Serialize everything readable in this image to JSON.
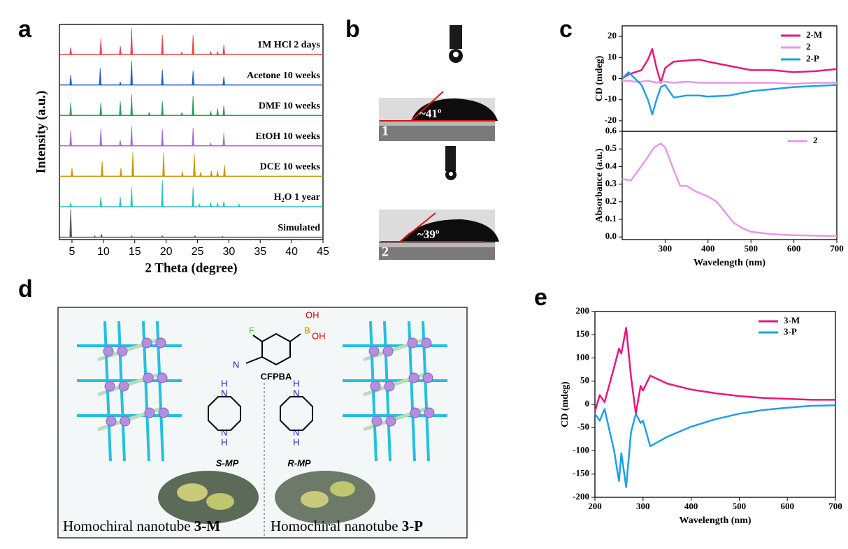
{
  "panel_labels": [
    "a",
    "b",
    "c",
    "d",
    "e"
  ],
  "chart_data": [
    {
      "type": "stick",
      "xlabel": "2 Theta (degree)",
      "ylabel": "Intensity (a.u.)",
      "xlim": [
        3,
        45
      ],
      "xticks": [
        5,
        10,
        15,
        20,
        25,
        30,
        35,
        40,
        45
      ],
      "series": [
        {
          "name": "1M HCl 2 days",
          "color": "#e8474a",
          "x": [
            4.8,
            9.6,
            12.7,
            14.5,
            19.4,
            22.5,
            24.3,
            27.1,
            28.2,
            29.2
          ],
          "values": [
            0.25,
            0.55,
            0.3,
            0.95,
            0.7,
            0.08,
            0.7,
            0.1,
            0.1,
            0.35
          ]
        },
        {
          "name": "Acetone 10 weeks",
          "color": "#1f5fcc",
          "x": [
            4.8,
            9.5,
            12.7,
            14.5,
            19.4,
            24.3,
            29.2
          ],
          "values": [
            0.35,
            0.6,
            0.1,
            0.85,
            0.55,
            0.5,
            0.3
          ]
        },
        {
          "name": "DMF 10 weeks",
          "color": "#2e9e5e",
          "x": [
            4.8,
            9.6,
            12.7,
            14.5,
            17.3,
            19.4,
            22.5,
            24.3,
            27.1,
            28.2,
            29.2
          ],
          "values": [
            0.45,
            0.45,
            0.5,
            0.75,
            0.1,
            0.5,
            0.1,
            0.7,
            0.15,
            0.25,
            0.35
          ]
        },
        {
          "name": "EtOH 10 weeks",
          "color": "#a66ad9",
          "x": [
            4.8,
            9.6,
            12.7,
            14.5,
            19.4,
            24.3,
            27.1,
            29.2
          ],
          "values": [
            0.55,
            0.6,
            0.2,
            0.7,
            0.6,
            0.65,
            0.1,
            0.45
          ]
        },
        {
          "name": "DCE 10 weeks",
          "color": "#c8960a",
          "x": [
            5,
            9.8,
            12.8,
            14.7,
            19.6,
            22.6,
            24.5,
            25.5,
            27.2,
            28.2,
            29.3
          ],
          "values": [
            0.3,
            0.55,
            0.3,
            0.85,
            0.85,
            0.15,
            0.8,
            0.15,
            0.2,
            0.2,
            0.4
          ]
        },
        {
          "name": "H₂O 1 year",
          "color": "#2cc2c2",
          "x": [
            4.8,
            9.6,
            12.7,
            14.5,
            19.4,
            24.3,
            25.3,
            27.1,
            28.2,
            29.2,
            31.6
          ],
          "values": [
            0.15,
            0.35,
            0.35,
            0.7,
            0.95,
            0.7,
            0.1,
            0.15,
            0.15,
            0.2,
            0.1
          ]
        },
        {
          "name": "Simulated",
          "color": "#555555",
          "x": [
            4.8,
            8.6,
            9.7,
            14.5,
            19.4,
            24.6,
            29
          ],
          "values": [
            1.0,
            0.05,
            0.1,
            0.05,
            0.05,
            0.05,
            0.03
          ]
        }
      ]
    },
    {
      "type": "line",
      "ylabel": "CD (mdeg)",
      "xlim": [
        200,
        700
      ],
      "ylim": [
        -25,
        25
      ],
      "yticks": [
        -20,
        -10,
        0,
        10,
        20
      ],
      "legend": "upper right",
      "x": [
        200,
        215,
        230,
        245,
        260,
        270,
        280,
        290,
        300,
        320,
        350,
        380,
        400,
        450,
        500,
        550,
        600,
        650,
        700
      ],
      "series": [
        {
          "name": "2-M",
          "color": "#e8177d",
          "values": [
            0,
            2,
            3,
            4,
            9,
            14,
            5,
            -2,
            5,
            8,
            8.5,
            9,
            8,
            6,
            4,
            4,
            3,
            3.5,
            4.5
          ]
        },
        {
          "name": "2",
          "color": "#e49ae8",
          "values": [
            -1,
            -1,
            -1.5,
            -1.5,
            -1,
            -1.5,
            -2,
            -1.5,
            -1.5,
            -2,
            -1.5,
            -2,
            -2,
            -2,
            -2,
            -2,
            -2.5,
            -2,
            -2
          ]
        },
        {
          "name": "2-P",
          "color": "#1ea0e6",
          "values": [
            0,
            3,
            0,
            -3,
            -10,
            -17,
            -10,
            -4,
            -3,
            -9,
            -8,
            -8,
            -8.5,
            -8,
            -6,
            -5,
            -4,
            -3.5,
            -3
          ]
        }
      ]
    },
    {
      "type": "line",
      "xlabel": "Wavelength (nm)",
      "ylabel": "Absorbance (a.u.)",
      "xlim": [
        200,
        700
      ],
      "xticks": [
        300,
        400,
        500,
        600,
        700
      ],
      "ylim": [
        -0.015,
        0.6
      ],
      "yticks": [
        {
          "value": 0,
          "label": "0.0"
        },
        0.1,
        0.2,
        0.3,
        0.4,
        0.5,
        0.6
      ],
      "legend": "upper right",
      "x": [
        200,
        220,
        250,
        275,
        290,
        300,
        320,
        335,
        350,
        370,
        400,
        420,
        440,
        460,
        480,
        500,
        550,
        600,
        700
      ],
      "series": [
        {
          "name": "2",
          "color": "#e49ae8",
          "values": [
            0.33,
            0.32,
            0.42,
            0.51,
            0.53,
            0.51,
            0.38,
            0.29,
            0.29,
            0.26,
            0.23,
            0.2,
            0.14,
            0.08,
            0.05,
            0.03,
            0.015,
            0.01,
            0.005
          ]
        }
      ]
    },
    {
      "type": "line",
      "xlabel": "Wavelength  (nm)",
      "ylabel": "CD (mdeg)",
      "xlim": [
        200,
        700
      ],
      "xticks": [
        200,
        300,
        400,
        500,
        600,
        700
      ],
      "ylim": [
        -200,
        200
      ],
      "yticks": [
        -200,
        -150,
        -100,
        -50,
        0,
        50,
        100,
        150,
        200
      ],
      "legend": "upper right",
      "x": [
        200,
        210,
        220,
        240,
        250,
        255,
        265,
        275,
        285,
        295,
        300,
        315,
        350,
        400,
        450,
        500,
        550,
        600,
        650,
        700
      ],
      "series": [
        {
          "name": "3-M",
          "color": "#e8177d",
          "values": [
            -15,
            20,
            5,
            80,
            120,
            110,
            165,
            60,
            -20,
            40,
            30,
            62,
            45,
            32,
            24,
            18,
            14,
            12,
            10,
            10
          ]
        },
        {
          "name": "3-P",
          "color": "#1ea0e6",
          "values": [
            -20,
            -35,
            -10,
            -100,
            -165,
            -105,
            -178,
            -60,
            -20,
            -40,
            -35,
            -90,
            -70,
            -48,
            -32,
            -20,
            -12,
            -7,
            -3,
            -2
          ]
        }
      ]
    }
  ],
  "contact_angle": [
    {
      "id": "1",
      "angle": "~41º"
    },
    {
      "id": "2",
      "angle": "~39º"
    }
  ],
  "scheme": {
    "molecule": "CFPBA",
    "cfpba_atoms": [
      "F",
      "B",
      "OH",
      "OH",
      "N"
    ],
    "s_mp": "S-MP",
    "r_mp": "R-MP",
    "amine_atoms": [
      "H",
      "N",
      "N",
      "H"
    ],
    "caption_left": {
      "text": "Homochiral nanotube ",
      "id": "3-M"
    },
    "caption_right": {
      "text": "Homochiral nanotube ",
      "id": "3-P"
    }
  }
}
